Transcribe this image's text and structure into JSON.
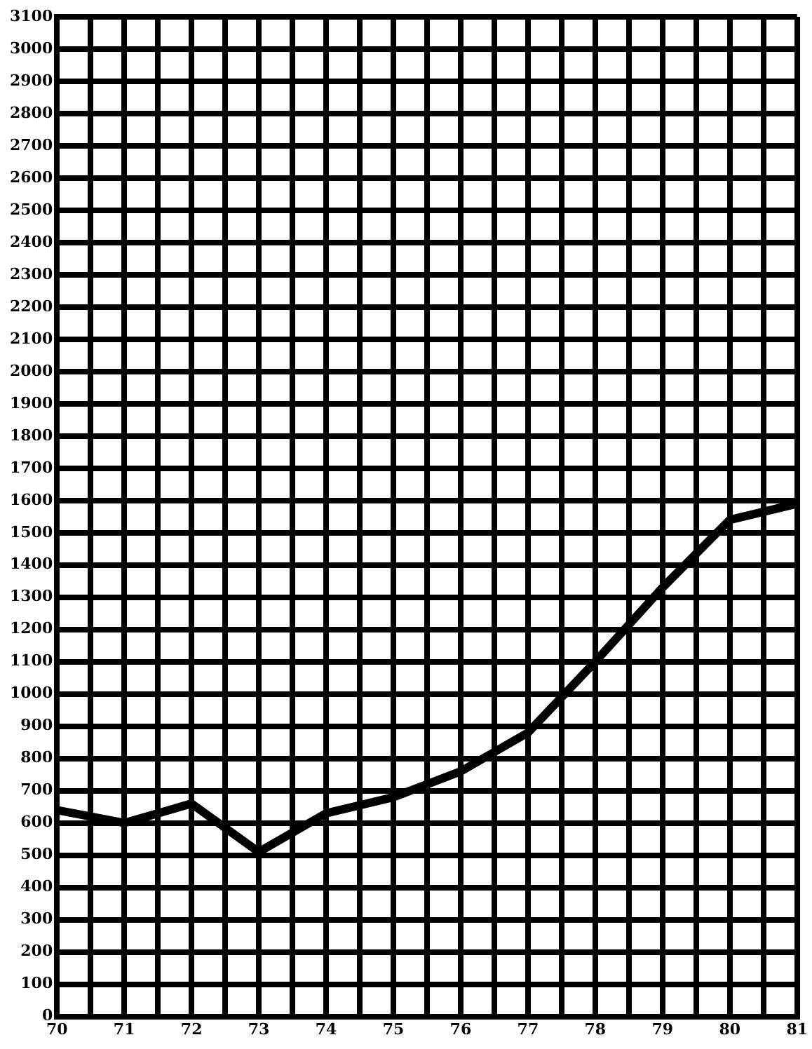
{
  "chart_data": {
    "type": "line",
    "x": [
      70,
      71,
      72,
      73,
      74,
      75,
      76,
      77,
      78,
      79,
      80,
      81
    ],
    "series": [
      {
        "color": "#000000",
        "values": [
          640,
          600,
          660,
          510,
          630,
          680,
          760,
          880,
          1100,
          1330,
          1540,
          1590
        ]
      }
    ],
    "xlim": [
      70,
      81
    ],
    "xticks": [
      70,
      {
        "value": 70.5,
        "label": null
      },
      71,
      {
        "value": 71.5,
        "label": null
      },
      72,
      {
        "value": 72.5,
        "label": null
      },
      73,
      {
        "value": 73.5,
        "label": null
      },
      74,
      {
        "value": 74.5,
        "label": null
      },
      75,
      {
        "value": 75.5,
        "label": null
      },
      76,
      {
        "value": 76.5,
        "label": null
      },
      77,
      {
        "value": 77.5,
        "label": null
      },
      78,
      {
        "value": 78.5,
        "label": null
      },
      79,
      {
        "value": 79.5,
        "label": null
      },
      80,
      {
        "value": 80.5,
        "label": null
      },
      81
    ],
    "ylim": [
      0,
      3100
    ],
    "yticks": [
      0,
      100,
      200,
      300,
      400,
      500,
      600,
      700,
      800,
      900,
      1000,
      1100,
      1200,
      1300,
      1400,
      1500,
      1600,
      1700,
      1800,
      1900,
      2000,
      2100,
      2200,
      2300,
      2400,
      2500,
      2600,
      2700,
      2800,
      2900,
      3000,
      3100
    ],
    "grid": true,
    "legend": false,
    "marker": "none",
    "line_style": "solid"
  }
}
